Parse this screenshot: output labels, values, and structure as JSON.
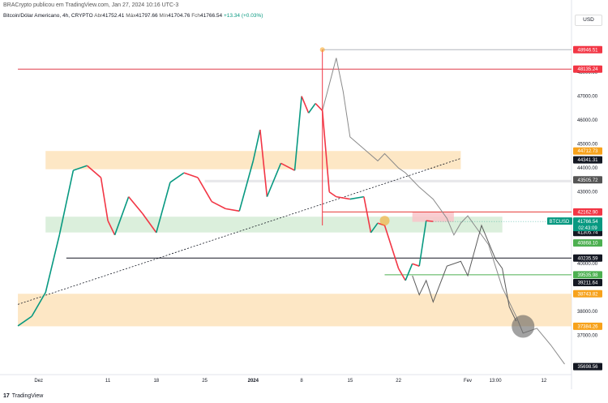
{
  "header": {
    "publisher": "BRACrypto publicou em TradingView.com, Jan 27, 2024 10:16 UTC-3",
    "symbol": "Bitcoin/Dólar Americano, 4h, CRYPTO",
    "open_label": "Abr",
    "open": "41752.41",
    "high_label": "Máx",
    "high": "41797.66",
    "low_label": "Mín",
    "low": "41704.76",
    "close_label": "Fch",
    "close": "41766.54",
    "change": "+13.34 (+0.03%)",
    "currency_button": "USD"
  },
  "footer": {
    "brand": "TradingView"
  },
  "chart_data": {
    "type": "candlestick",
    "y_axis": {
      "ylim": [
        35500,
        49600
      ],
      "ticks": [
        37000,
        38000,
        40000,
        43000,
        44000,
        45000,
        46000,
        47000,
        48000
      ]
    },
    "y_tick_labels": [
      "37000.00",
      "38000.00",
      "40000.00",
      "43000.00",
      "44000.00",
      "45000.00",
      "46000.00",
      "47000.00",
      "48000.00"
    ],
    "x_ticks": [
      {
        "label": "Dez",
        "date": "2023-12-01"
      },
      {
        "label": "11",
        "date": "2023-12-11"
      },
      {
        "label": "18",
        "date": "2023-12-18"
      },
      {
        "label": "25",
        "date": "2023-12-25"
      },
      {
        "label": "2024",
        "date": "2024-01-01",
        "bold": true
      },
      {
        "label": "8",
        "date": "2024-01-08"
      },
      {
        "label": "15",
        "date": "2024-01-15"
      },
      {
        "label": "22",
        "date": "2024-01-22"
      },
      {
        "label": "Fev",
        "date": "2024-02-01"
      },
      {
        "label": "13:00",
        "date": "2024-02-05"
      },
      {
        "label": "12",
        "date": "2024-02-12"
      }
    ],
    "price_path": [
      [
        "2023-11-28",
        37400
      ],
      [
        "2023-11-30",
        37800
      ],
      [
        "2023-12-02",
        38800
      ],
      [
        "2023-12-04",
        41200
      ],
      [
        "2023-12-06",
        43900
      ],
      [
        "2023-12-08",
        44100
      ],
      [
        "2023-12-10",
        43600
      ],
      [
        "2023-12-11",
        41800
      ],
      [
        "2023-12-12",
        41200
      ],
      [
        "2023-12-14",
        42800
      ],
      [
        "2023-12-16",
        42100
      ],
      [
        "2023-12-18",
        41300
      ],
      [
        "2023-12-20",
        43400
      ],
      [
        "2023-12-22",
        43800
      ],
      [
        "2023-12-24",
        43600
      ],
      [
        "2023-12-26",
        42600
      ],
      [
        "2023-12-28",
        42300
      ],
      [
        "2023-12-30",
        42200
      ],
      [
        "2024-01-01",
        44300
      ],
      [
        "2024-01-02",
        45600
      ],
      [
        "2024-01-03",
        42800
      ],
      [
        "2024-01-05",
        44200
      ],
      [
        "2024-01-07",
        43900
      ],
      [
        "2024-01-08",
        47000
      ],
      [
        "2024-01-09",
        46300
      ],
      [
        "2024-01-10",
        46700
      ],
      [
        "2024-01-11",
        46400
      ],
      [
        "2024-01-12",
        43000
      ],
      [
        "2024-01-13",
        42800
      ],
      [
        "2024-01-15",
        42700
      ],
      [
        "2024-01-17",
        42800
      ],
      [
        "2024-01-18",
        41300
      ],
      [
        "2024-01-19",
        41700
      ],
      [
        "2024-01-20",
        41600
      ],
      [
        "2024-01-22",
        39800
      ],
      [
        "2024-01-23",
        39300
      ],
      [
        "2024-01-24",
        40000
      ],
      [
        "2024-01-25",
        39900
      ],
      [
        "2024-01-26",
        41800
      ],
      [
        "2024-01-27",
        41766.54
      ]
    ],
    "wicks": [
      {
        "date": "2024-01-11",
        "low": 41600,
        "high": 48946.51,
        "color": "#f23645"
      }
    ],
    "projection_path": [
      [
        "2024-01-11",
        46400
      ],
      [
        "2024-01-13",
        48600
      ],
      [
        "2024-01-14",
        47200
      ],
      [
        "2024-01-15",
        45300
      ],
      [
        "2024-01-17",
        44800
      ],
      [
        "2024-01-19",
        44300
      ],
      [
        "2024-01-20",
        44600
      ],
      [
        "2024-01-22",
        44000
      ],
      [
        "2024-01-23",
        43800
      ],
      [
        "2024-01-25",
        43200
      ],
      [
        "2024-01-27",
        42700
      ],
      [
        "2024-01-29",
        41900
      ],
      [
        "2024-01-30",
        41200
      ],
      [
        "2024-01-31",
        41700
      ],
      [
        "2024-02-01",
        42000
      ],
      [
        "2024-02-02",
        41600
      ],
      [
        "2024-02-04",
        40800
      ],
      [
        "2024-02-06",
        39000
      ],
      [
        "2024-02-08",
        37800
      ],
      [
        "2024-02-09",
        37100
      ],
      [
        "2024-02-11",
        37300
      ],
      [
        "2024-02-13",
        36600
      ],
      [
        "2024-02-15",
        35800
      ]
    ],
    "projection_path_2": [
      [
        "2024-01-24",
        39500
      ],
      [
        "2024-01-25",
        38700
      ],
      [
        "2024-01-26",
        39300
      ],
      [
        "2024-01-27",
        38400
      ],
      [
        "2024-01-29",
        39900
      ],
      [
        "2024-01-31",
        40100
      ],
      [
        "2024-02-01",
        39500
      ],
      [
        "2024-02-03",
        41600
      ],
      [
        "2024-02-05",
        40200
      ],
      [
        "2024-02-06",
        39800
      ],
      [
        "2024-02-07",
        38200
      ],
      [
        "2024-02-08",
        37600
      ]
    ],
    "zones": [
      {
        "from": "2023-12-02",
        "to": "2024-01-31",
        "low": 43950,
        "high": 44712.73,
        "color": "#fde3bb"
      },
      {
        "from": "2023-12-02",
        "to": "2024-02-06",
        "low": 41305.74,
        "high": 41966,
        "color": "#d5ecd6"
      },
      {
        "from": "2023-11-28",
        "to": "2024-02-16",
        "low": 37384.26,
        "high": 38743.82,
        "color": "#fde3bb"
      },
      {
        "from": "2024-01-24",
        "to": "2024-01-30",
        "low": 41751.18,
        "high": 42162.9,
        "color": "#f9c4c9"
      },
      {
        "from": "2023-12-25",
        "to": "2024-02-16",
        "low": 43400,
        "high": 43505.72,
        "color": "#e4e4e8"
      }
    ],
    "levels": [
      {
        "value": 48946.51,
        "label": "48946.51",
        "color": "#f23645",
        "line": "#b2b5be",
        "from": "2024-01-11"
      },
      {
        "value": 48135.24,
        "label": "48135.24",
        "color": "#f23645",
        "line": "#e03b4a",
        "from": "2023-11-28"
      },
      {
        "value": 44712.73,
        "label": "44712.73",
        "color": "#f7a21b",
        "line": null
      },
      {
        "value": 44341.31,
        "label": "44341.31",
        "color": "#131722",
        "line": null
      },
      {
        "value": 43505.72,
        "label": "43505.72",
        "color": "#555555",
        "line": null
      },
      {
        "value": 42162.9,
        "label": "42162.90",
        "color": "#f23645",
        "line": "#e53935",
        "from": "2024-01-11"
      },
      {
        "value": 41751.18,
        "label": "41751.18",
        "color": "#9c27b0",
        "line": null
      },
      {
        "value": 41523.6,
        "label": "41523.60",
        "color": "#f7a21b",
        "line": null
      },
      {
        "value": 41305.74,
        "label": "41305.74",
        "color": "#131722",
        "line": null
      },
      {
        "value": 40868.1,
        "label": "40868.10",
        "color": "#4caf50",
        "line": null
      },
      {
        "value": 40235.59,
        "label": "40235.59",
        "color": "#131722",
        "line": "#131722",
        "from": "2023-12-05"
      },
      {
        "value": 39535.98,
        "label": "39535.98",
        "color": "#4caf50",
        "line": "#4caf50",
        "from": "2024-01-20"
      },
      {
        "value": 39211.64,
        "label": "39211.64",
        "color": "#131722",
        "line": null
      },
      {
        "value": 38743.82,
        "label": "38743.82",
        "color": "#f7a21b",
        "line": null
      },
      {
        "value": 37384.26,
        "label": "37384.26",
        "color": "#f7a21b",
        "line": null
      },
      {
        "value": 35698.56,
        "label": "35698.56",
        "color": "#131722",
        "line": null
      }
    ],
    "current_price": {
      "symbol": "BTCUSD",
      "value": 41766.54,
      "label": "41766.54",
      "countdown": "02:43:09",
      "color": "#089981"
    },
    "trendline": {
      "from": [
        "2023-11-28",
        38300
      ],
      "to": [
        "2024-01-31",
        44400
      ]
    },
    "markers": [
      {
        "type": "circle",
        "date": "2024-01-11",
        "value": 48946.51,
        "color": "#f7a21b",
        "size": "small"
      },
      {
        "type": "circle",
        "date": "2024-01-20",
        "value": 41800,
        "color": "#f7a21b",
        "size": "medium"
      },
      {
        "type": "circle",
        "date": "2024-02-09",
        "value": 37380,
        "color": "#555555",
        "size": "large"
      }
    ]
  }
}
